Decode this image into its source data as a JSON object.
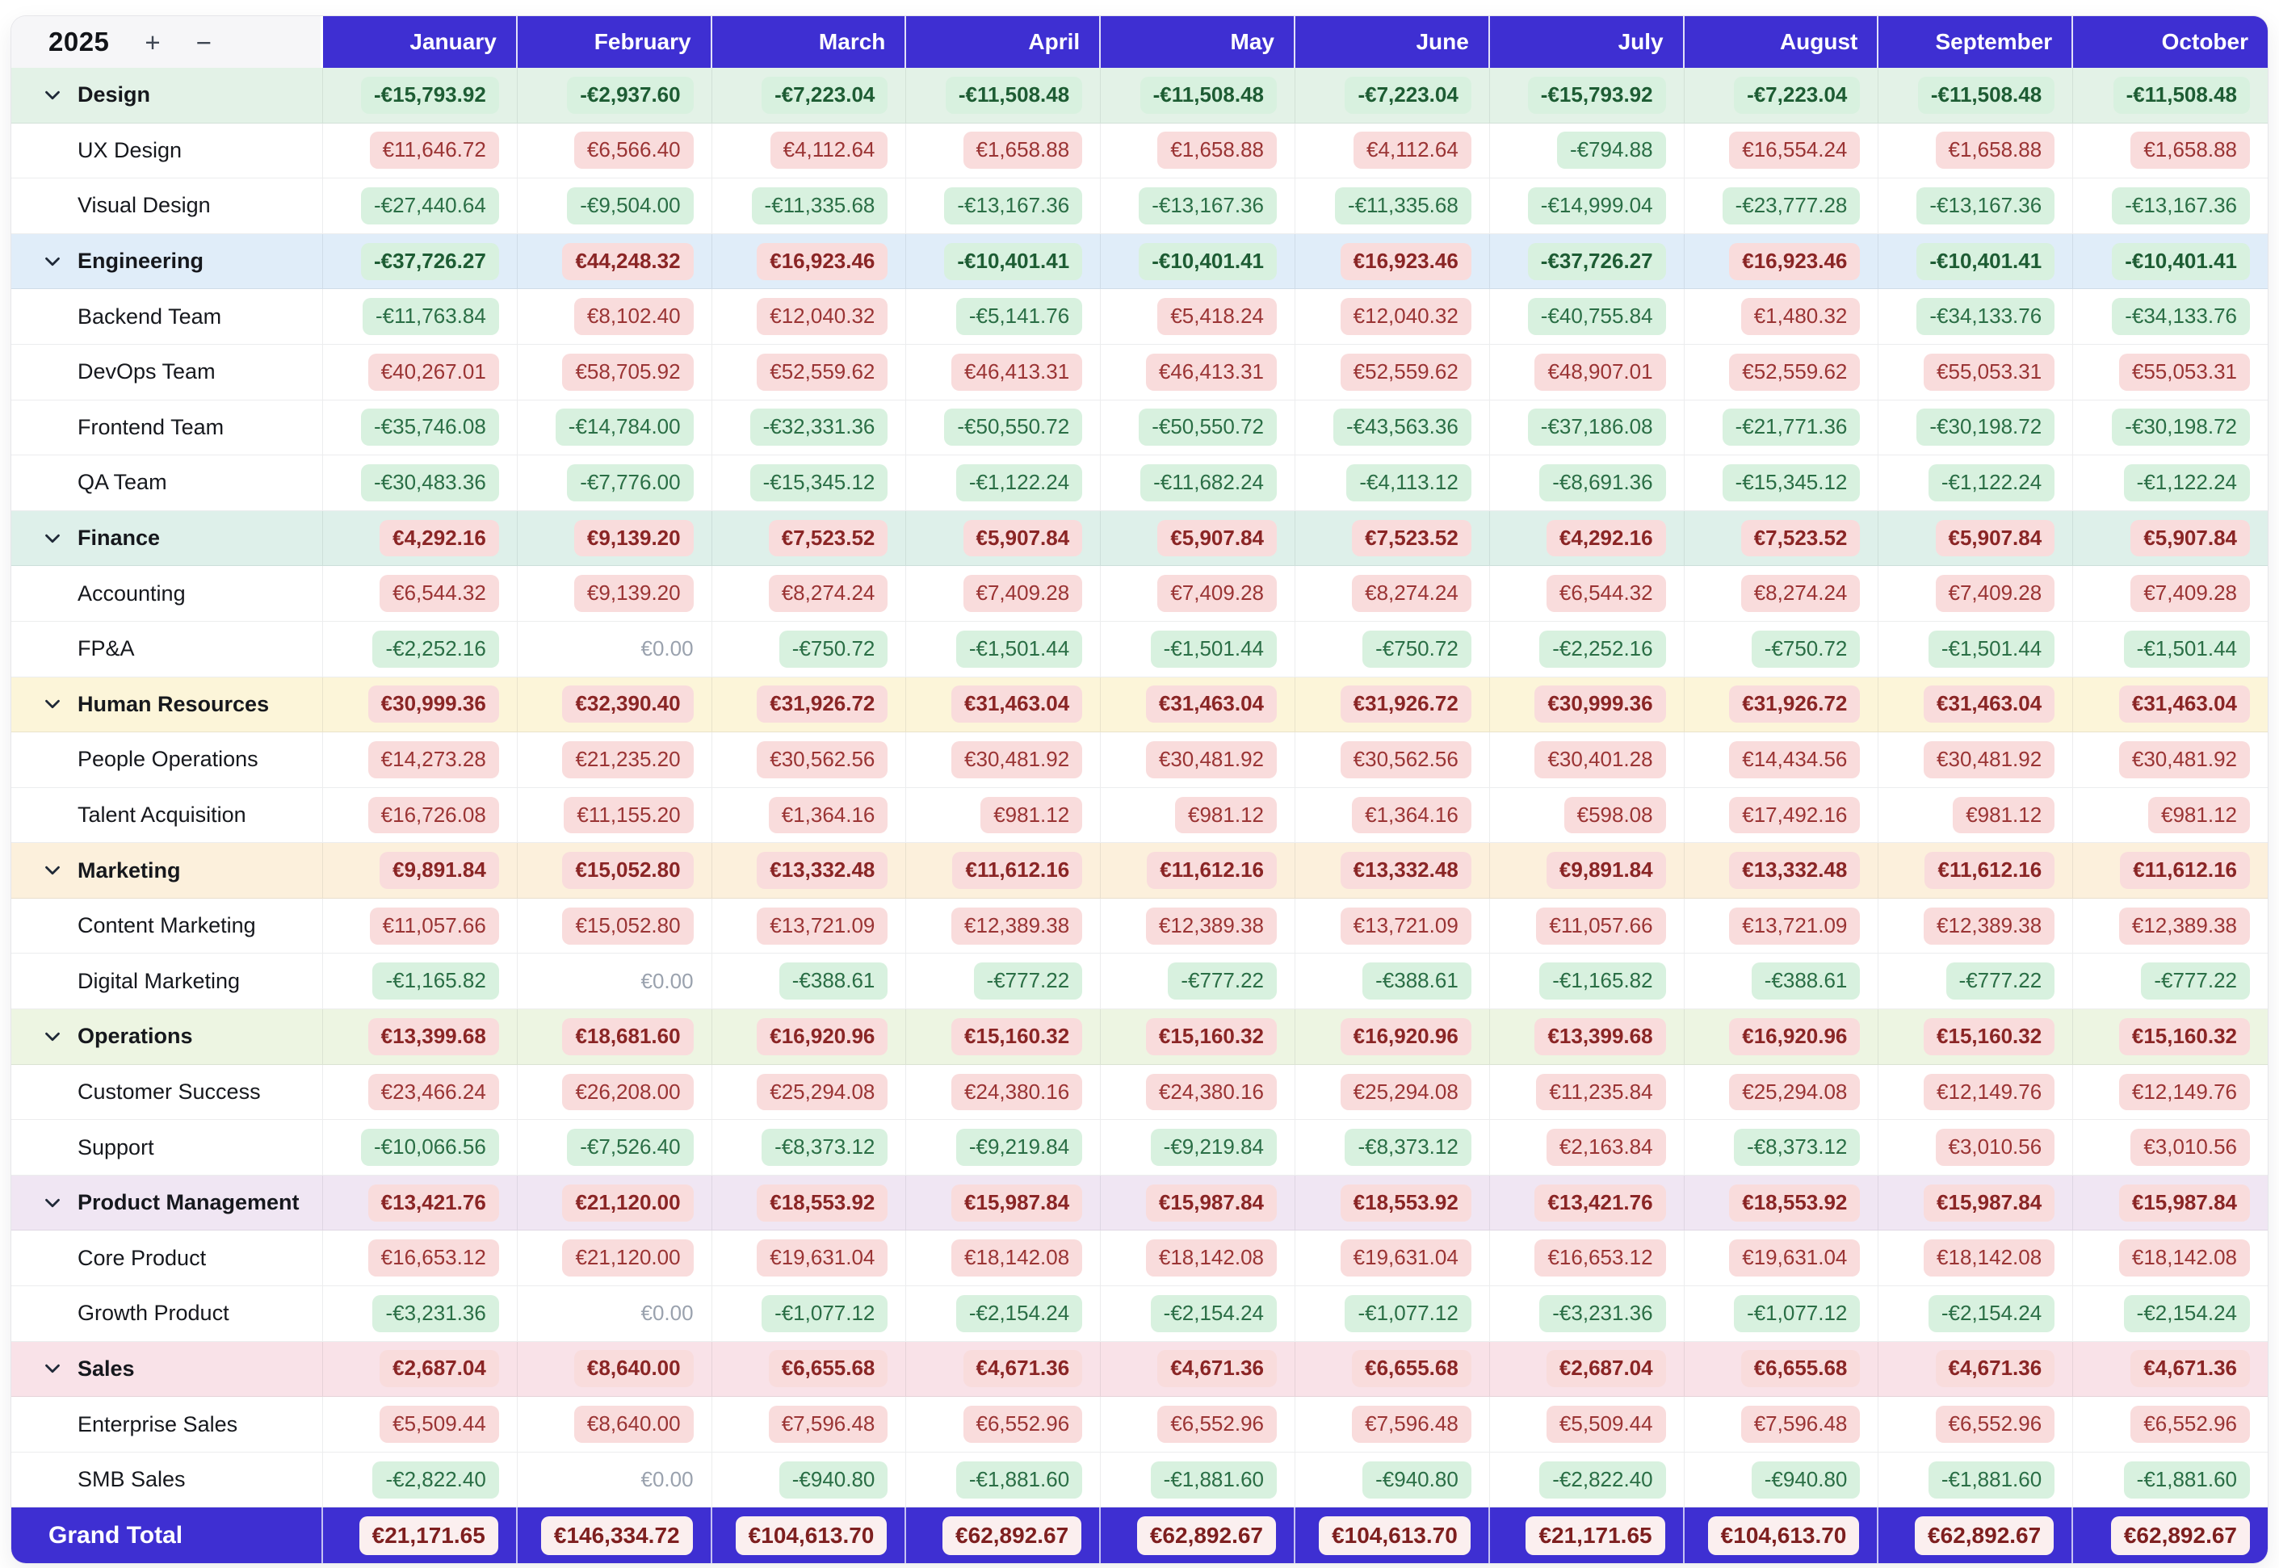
{
  "year_control": {
    "year": "2025",
    "add_label": "+",
    "remove_label": "−"
  },
  "months": [
    "January",
    "February",
    "March",
    "April",
    "May",
    "June",
    "July",
    "August",
    "September",
    "October"
  ],
  "rows": [
    {
      "type": "group",
      "theme": "design",
      "label": "Design",
      "values": [
        "-€15,793.92",
        "-€2,937.60",
        "-€7,223.04",
        "-€11,508.48",
        "-€11,508.48",
        "-€7,223.04",
        "-€15,793.92",
        "-€7,223.04",
        "-€11,508.48",
        "-€11,508.48"
      ]
    },
    {
      "type": "child",
      "label": "UX Design",
      "values": [
        "€11,646.72",
        "€6,566.40",
        "€4,112.64",
        "€1,658.88",
        "€1,658.88",
        "€4,112.64",
        "-€794.88",
        "€16,554.24",
        "€1,658.88",
        "€1,658.88"
      ]
    },
    {
      "type": "child",
      "label": "Visual Design",
      "values": [
        "-€27,440.64",
        "-€9,504.00",
        "-€11,335.68",
        "-€13,167.36",
        "-€13,167.36",
        "-€11,335.68",
        "-€14,999.04",
        "-€23,777.28",
        "-€13,167.36",
        "-€13,167.36"
      ]
    },
    {
      "type": "group",
      "theme": "engineering",
      "label": "Engineering",
      "values": [
        "-€37,726.27",
        "€44,248.32",
        "€16,923.46",
        "-€10,401.41",
        "-€10,401.41",
        "€16,923.46",
        "-€37,726.27",
        "€16,923.46",
        "-€10,401.41",
        "-€10,401.41"
      ]
    },
    {
      "type": "child",
      "label": "Backend Team",
      "values": [
        "-€11,763.84",
        "€8,102.40",
        "€12,040.32",
        "-€5,141.76",
        "€5,418.24",
        "€12,040.32",
        "-€40,755.84",
        "€1,480.32",
        "-€34,133.76",
        "-€34,133.76"
      ]
    },
    {
      "type": "child",
      "label": "DevOps Team",
      "values": [
        "€40,267.01",
        "€58,705.92",
        "€52,559.62",
        "€46,413.31",
        "€46,413.31",
        "€52,559.62",
        "€48,907.01",
        "€52,559.62",
        "€55,053.31",
        "€55,053.31"
      ]
    },
    {
      "type": "child",
      "label": "Frontend Team",
      "values": [
        "-€35,746.08",
        "-€14,784.00",
        "-€32,331.36",
        "-€50,550.72",
        "-€50,550.72",
        "-€43,563.36",
        "-€37,186.08",
        "-€21,771.36",
        "-€30,198.72",
        "-€30,198.72"
      ]
    },
    {
      "type": "child",
      "label": "QA Team",
      "values": [
        "-€30,483.36",
        "-€7,776.00",
        "-€15,345.12",
        "-€1,122.24",
        "-€11,682.24",
        "-€4,113.12",
        "-€8,691.36",
        "-€15,345.12",
        "-€1,122.24",
        "-€1,122.24"
      ]
    },
    {
      "type": "group",
      "theme": "finance",
      "label": "Finance",
      "values": [
        "€4,292.16",
        "€9,139.20",
        "€7,523.52",
        "€5,907.84",
        "€5,907.84",
        "€7,523.52",
        "€4,292.16",
        "€7,523.52",
        "€5,907.84",
        "€5,907.84"
      ]
    },
    {
      "type": "child",
      "label": "Accounting",
      "values": [
        "€6,544.32",
        "€9,139.20",
        "€8,274.24",
        "€7,409.28",
        "€7,409.28",
        "€8,274.24",
        "€6,544.32",
        "€8,274.24",
        "€7,409.28",
        "€7,409.28"
      ]
    },
    {
      "type": "child",
      "label": "FP&A",
      "values": [
        "-€2,252.16",
        "€0.00",
        "-€750.72",
        "-€1,501.44",
        "-€1,501.44",
        "-€750.72",
        "-€2,252.16",
        "-€750.72",
        "-€1,501.44",
        "-€1,501.44"
      ]
    },
    {
      "type": "group",
      "theme": "hr",
      "label": "Human Resources",
      "values": [
        "€30,999.36",
        "€32,390.40",
        "€31,926.72",
        "€31,463.04",
        "€31,463.04",
        "€31,926.72",
        "€30,999.36",
        "€31,926.72",
        "€31,463.04",
        "€31,463.04"
      ]
    },
    {
      "type": "child",
      "label": "People Operations",
      "values": [
        "€14,273.28",
        "€21,235.20",
        "€30,562.56",
        "€30,481.92",
        "€30,481.92",
        "€30,562.56",
        "€30,401.28",
        "€14,434.56",
        "€30,481.92",
        "€30,481.92"
      ]
    },
    {
      "type": "child",
      "label": "Talent Acquisition",
      "values": [
        "€16,726.08",
        "€11,155.20",
        "€1,364.16",
        "€981.12",
        "€981.12",
        "€1,364.16",
        "€598.08",
        "€17,492.16",
        "€981.12",
        "€981.12"
      ]
    },
    {
      "type": "group",
      "theme": "marketing",
      "label": "Marketing",
      "values": [
        "€9,891.84",
        "€15,052.80",
        "€13,332.48",
        "€11,612.16",
        "€11,612.16",
        "€13,332.48",
        "€9,891.84",
        "€13,332.48",
        "€11,612.16",
        "€11,612.16"
      ]
    },
    {
      "type": "child",
      "label": "Content Marketing",
      "values": [
        "€11,057.66",
        "€15,052.80",
        "€13,721.09",
        "€12,389.38",
        "€12,389.38",
        "€13,721.09",
        "€11,057.66",
        "€13,721.09",
        "€12,389.38",
        "€12,389.38"
      ]
    },
    {
      "type": "child",
      "label": "Digital Marketing",
      "values": [
        "-€1,165.82",
        "€0.00",
        "-€388.61",
        "-€777.22",
        "-€777.22",
        "-€388.61",
        "-€1,165.82",
        "-€388.61",
        "-€777.22",
        "-€777.22"
      ]
    },
    {
      "type": "group",
      "theme": "operations",
      "label": "Operations",
      "values": [
        "€13,399.68",
        "€18,681.60",
        "€16,920.96",
        "€15,160.32",
        "€15,160.32",
        "€16,920.96",
        "€13,399.68",
        "€16,920.96",
        "€15,160.32",
        "€15,160.32"
      ]
    },
    {
      "type": "child",
      "label": "Customer Success",
      "values": [
        "€23,466.24",
        "€26,208.00",
        "€25,294.08",
        "€24,380.16",
        "€24,380.16",
        "€25,294.08",
        "€11,235.84",
        "€25,294.08",
        "€12,149.76",
        "€12,149.76"
      ]
    },
    {
      "type": "child",
      "label": "Support",
      "values": [
        "-€10,066.56",
        "-€7,526.40",
        "-€8,373.12",
        "-€9,219.84",
        "-€9,219.84",
        "-€8,373.12",
        "€2,163.84",
        "-€8,373.12",
        "€3,010.56",
        "€3,010.56"
      ]
    },
    {
      "type": "group",
      "theme": "product",
      "label": "Product Management",
      "values": [
        "€13,421.76",
        "€21,120.00",
        "€18,553.92",
        "€15,987.84",
        "€15,987.84",
        "€18,553.92",
        "€13,421.76",
        "€18,553.92",
        "€15,987.84",
        "€15,987.84"
      ]
    },
    {
      "type": "child",
      "label": "Core Product",
      "values": [
        "€16,653.12",
        "€21,120.00",
        "€19,631.04",
        "€18,142.08",
        "€18,142.08",
        "€19,631.04",
        "€16,653.12",
        "€19,631.04",
        "€18,142.08",
        "€18,142.08"
      ]
    },
    {
      "type": "child",
      "label": "Growth Product",
      "values": [
        "-€3,231.36",
        "€0.00",
        "-€1,077.12",
        "-€2,154.24",
        "-€2,154.24",
        "-€1,077.12",
        "-€3,231.36",
        "-€1,077.12",
        "-€2,154.24",
        "-€2,154.24"
      ]
    },
    {
      "type": "group",
      "theme": "sales",
      "label": "Sales",
      "values": [
        "€2,687.04",
        "€8,640.00",
        "€6,655.68",
        "€4,671.36",
        "€4,671.36",
        "€6,655.68",
        "€2,687.04",
        "€6,655.68",
        "€4,671.36",
        "€4,671.36"
      ]
    },
    {
      "type": "child",
      "label": "Enterprise Sales",
      "values": [
        "€5,509.44",
        "€8,640.00",
        "€7,596.48",
        "€6,552.96",
        "€6,552.96",
        "€7,596.48",
        "€5,509.44",
        "€7,596.48",
        "€6,552.96",
        "€6,552.96"
      ]
    },
    {
      "type": "child",
      "label": "SMB Sales",
      "values": [
        "-€2,822.40",
        "€0.00",
        "-€940.80",
        "-€1,881.60",
        "-€1,881.60",
        "-€940.80",
        "-€2,822.40",
        "-€940.80",
        "-€1,881.60",
        "-€1,881.60"
      ]
    },
    {
      "type": "grand",
      "label": "Grand Total",
      "values": [
        "€21,171.65",
        "€146,334.72",
        "€104,613.70",
        "€62,892.67",
        "€62,892.67",
        "€104,613.70",
        "€21,171.65",
        "€104,613.70",
        "€62,892.67",
        "€62,892.67"
      ]
    }
  ],
  "colors": {
    "accent": "#3E2FD2",
    "corner-bg": "#F6F6F8",
    "pos-bg": "#F9DCDC",
    "pos-text": "#9A3434",
    "pos-text-strong": "#8A2525",
    "neg-bg": "#D8F1DF",
    "neg-text": "#2A6E45",
    "neg-text-strong": "#1D5C33",
    "zero-text": "#9AA2AE",
    "grand-pill-bg": "#FBEFEF",
    "grand-pill-text": "#7E1F1F",
    "theme-design": "#E3F2E7",
    "theme-engineering": "#E0EDF9",
    "theme-finance": "#DEF0EA",
    "theme-hr": "#FCF5D9",
    "theme-marketing": "#FCF0DC",
    "theme-operations": "#EDF5E2",
    "theme-product": "#F0E6F3",
    "theme-sales": "#F9E2E8",
    "border": "rgba(17,24,39,0.08)"
  }
}
